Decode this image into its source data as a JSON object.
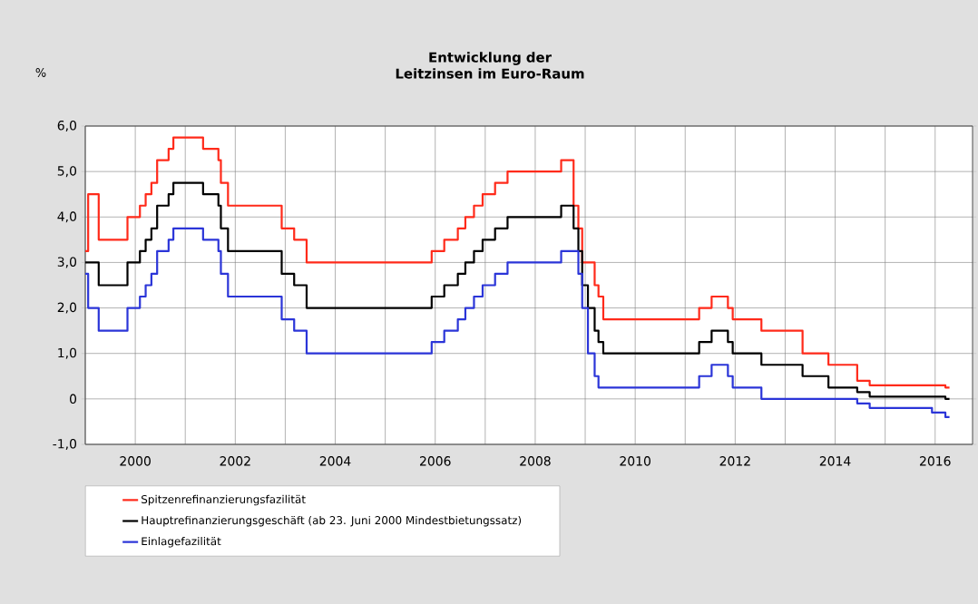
{
  "chart_data": {
    "type": "step",
    "title": "Entwicklung der Leitzinsen im Euro-Raum",
    "ylabel": "%",
    "x": [
      "1999-01-01",
      "1999-01-22",
      "1999-04-09",
      "1999-11-05",
      "2000-02-04",
      "2000-03-17",
      "2000-04-28",
      "2000-06-09",
      "2000-09-01",
      "2000-10-06",
      "2001-05-11",
      "2001-08-31",
      "2001-09-18",
      "2001-11-09",
      "2002-12-06",
      "2003-03-07",
      "2003-06-06",
      "2005-12-06",
      "2006-03-08",
      "2006-06-15",
      "2006-08-09",
      "2006-10-11",
      "2006-12-13",
      "2007-03-14",
      "2007-06-13",
      "2008-07-09",
      "2008-10-08",
      "2008-10-15",
      "2008-11-12",
      "2008-12-10",
      "2009-01-21",
      "2009-03-11",
      "2009-04-08",
      "2009-05-13",
      "2011-04-13",
      "2011-07-13",
      "2011-11-09",
      "2011-12-14",
      "2012-07-11",
      "2013-05-08",
      "2013-11-13",
      "2014-06-11",
      "2014-09-10",
      "2015-12-09",
      "2016-03-16",
      "2016-04-15"
    ],
    "series": [
      {
        "name": "Spitzenrefinanzierungsfazilität",
        "color": "#ff2a1a",
        "values": [
          3.25,
          4.5,
          3.5,
          4.0,
          4.25,
          4.5,
          4.75,
          5.25,
          5.5,
          5.75,
          5.5,
          5.25,
          4.75,
          4.25,
          3.75,
          3.5,
          3.0,
          3.25,
          3.5,
          3.75,
          4.0,
          4.25,
          4.5,
          4.75,
          5.0,
          5.25,
          4.25,
          4.25,
          3.75,
          3.0,
          3.0,
          2.5,
          2.25,
          1.75,
          2.0,
          2.25,
          2.0,
          1.75,
          1.5,
          1.0,
          0.75,
          0.4,
          0.3,
          0.3,
          0.25,
          0.25
        ]
      },
      {
        "name": "Hauptrefinanzierungsgeschäft (ab 23. Juni 2000 Mindestbietungssatz)",
        "color": "#000000",
        "values": [
          3.0,
          3.0,
          2.5,
          3.0,
          3.25,
          3.5,
          3.75,
          4.25,
          4.5,
          4.75,
          4.5,
          4.25,
          3.75,
          3.25,
          2.75,
          2.5,
          2.0,
          2.25,
          2.5,
          2.75,
          3.0,
          3.25,
          3.5,
          3.75,
          4.0,
          4.25,
          3.75,
          3.75,
          3.25,
          2.5,
          2.0,
          1.5,
          1.25,
          1.0,
          1.25,
          1.5,
          1.25,
          1.0,
          0.75,
          0.5,
          0.25,
          0.15,
          0.05,
          0.05,
          0.0,
          0.0
        ]
      },
      {
        "name": "Einlagefazilität",
        "color": "#2b35d8",
        "values": [
          2.75,
          2.0,
          1.5,
          2.0,
          2.25,
          2.5,
          2.75,
          3.25,
          3.5,
          3.75,
          3.5,
          3.25,
          2.75,
          2.25,
          1.75,
          1.5,
          1.0,
          1.25,
          1.5,
          1.75,
          2.0,
          2.25,
          2.5,
          2.75,
          3.0,
          3.25,
          3.25,
          3.25,
          2.75,
          2.0,
          1.0,
          0.5,
          0.25,
          0.25,
          0.5,
          0.75,
          0.5,
          0.25,
          0.0,
          0.0,
          0.0,
          -0.1,
          -0.2,
          -0.3,
          -0.4,
          -0.4
        ]
      }
    ],
    "xlim": [
      "1999-01-01",
      "2016-10-01"
    ],
    "xticks": [
      {
        "value": "1999",
        "label": null
      },
      "2000",
      {
        "value": "2001",
        "label": null
      },
      "2002",
      {
        "value": "2003",
        "label": null
      },
      "2004",
      {
        "value": "2005",
        "label": null
      },
      "2006",
      {
        "value": "2007",
        "label": null
      },
      "2008",
      {
        "value": "2009",
        "label": null
      },
      "2010",
      {
        "value": "2011",
        "label": null
      },
      "2012",
      {
        "value": "2013",
        "label": null
      },
      "2014",
      {
        "value": "2015",
        "label": null
      },
      "2016"
    ],
    "ylim": [
      -1,
      6
    ],
    "yticks": [
      {
        "value": -1,
        "label": "-1,0"
      },
      0,
      {
        "value": 1,
        "label": "1,0"
      },
      {
        "value": 2,
        "label": "2,0"
      },
      {
        "value": 3,
        "label": "3,0"
      },
      {
        "value": 4,
        "label": "4,0"
      },
      {
        "value": 5,
        "label": "5,0"
      },
      {
        "value": 6,
        "label": "6,0"
      }
    ],
    "grid": true,
    "legend": "bottom",
    "line_style": "solid",
    "marker": "none"
  }
}
